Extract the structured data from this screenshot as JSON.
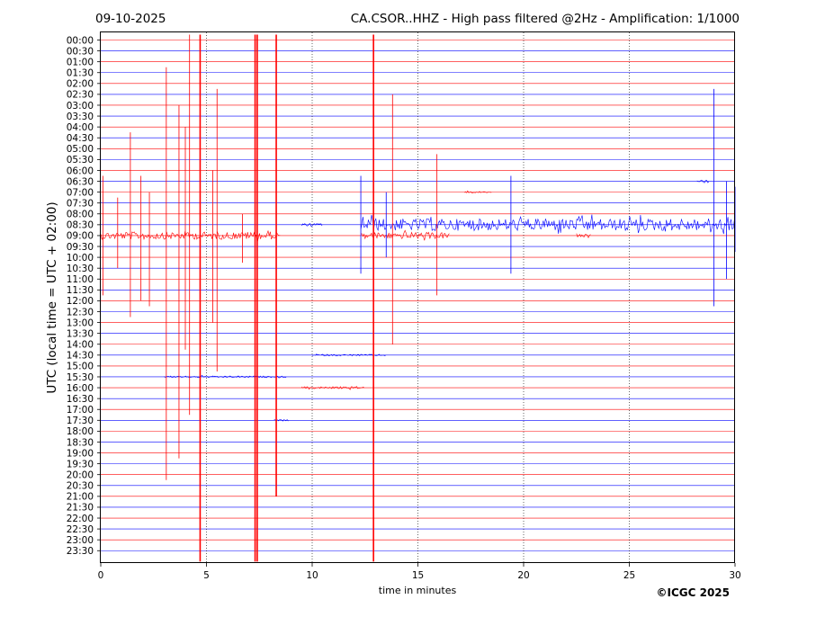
{
  "header": {
    "date": "09-10-2025",
    "title": "CA.CSOR..HHZ - High pass filtered @2Hz - Amplification: 1/1000"
  },
  "copyright": "©ICGC 2025",
  "colors": {
    "red_trace": "#ff0000",
    "blue_trace": "#0000ff",
    "frame": "#000000"
  },
  "chart_data": {
    "type": "line",
    "title": "CA.CSOR..HHZ - High pass filtered @2Hz - Amplification: 1/1000",
    "xlabel": "time in minutes",
    "ylabel": "UTC (local time = UTC + 02:00)",
    "xlim": [
      0,
      30
    ],
    "xticks": [
      "0",
      "5",
      "10",
      "15",
      "20",
      "25",
      "30"
    ],
    "grid": "vertical dotted lines at every 5 minutes",
    "y_rows": [
      "00:00",
      "00:30",
      "01:00",
      "01:30",
      "02:00",
      "02:30",
      "03:00",
      "03:30",
      "04:00",
      "04:30",
      "05:00",
      "05:30",
      "06:00",
      "06:30",
      "07:00",
      "07:30",
      "08:00",
      "08:30",
      "09:00",
      "09:30",
      "10:00",
      "10:30",
      "11:00",
      "11:30",
      "12:00",
      "12:30",
      "13:00",
      "13:30",
      "14:00",
      "14:30",
      "15:00",
      "15:30",
      "16:00",
      "16:30",
      "17:00",
      "17:30",
      "18:00",
      "18:30",
      "19:00",
      "19:30",
      "20:00",
      "20:30",
      "21:00",
      "21:30",
      "22:00",
      "22:30",
      "23:00",
      "23:30"
    ],
    "row_colors": "alternating red (even rows) and blue (odd rows)",
    "noise_bands": [
      {
        "row": "09:00",
        "color": "red",
        "x_start": 0,
        "x_end": 8.5,
        "amplitude": 0.35
      },
      {
        "row": "08:30",
        "color": "blue",
        "x_start": 9.5,
        "x_end": 10.5,
        "amplitude": 0.12
      },
      {
        "row": "08:30",
        "color": "blue",
        "x_start": 12.3,
        "x_end": 30,
        "amplitude": 0.55
      },
      {
        "row": "09:00",
        "color": "red",
        "x_start": 12.3,
        "x_end": 16.5,
        "amplitude": 0.3
      },
      {
        "row": "09:00",
        "color": "red",
        "x_start": 22.5,
        "x_end": 23.2,
        "amplitude": 0.12
      },
      {
        "row": "14:30",
        "color": "blue",
        "x_start": 10,
        "x_end": 13.5,
        "amplitude": 0.08
      },
      {
        "row": "15:30",
        "color": "blue",
        "x_start": 3,
        "x_end": 8.8,
        "amplitude": 0.08
      },
      {
        "row": "17:30",
        "color": "blue",
        "x_start": 8.2,
        "x_end": 8.9,
        "amplitude": 0.08
      },
      {
        "row": "16:00",
        "color": "red",
        "x_start": 9.5,
        "x_end": 12.5,
        "amplitude": 0.1
      },
      {
        "row": "06:30",
        "color": "blue",
        "x_start": 28.2,
        "x_end": 28.8,
        "amplitude": 0.15
      },
      {
        "row": "07:00",
        "color": "red",
        "x_start": 17.2,
        "x_end": 18.5,
        "amplitude": 0.08
      }
    ],
    "spikes": [
      {
        "x": 0.1,
        "row": "09:00",
        "color": "red",
        "up": 5.5,
        "down": 5.5
      },
      {
        "x": 0.8,
        "row": "09:00",
        "color": "red",
        "up": 3.5,
        "down": 3.0
      },
      {
        "x": 1.4,
        "row": "09:00",
        "color": "red",
        "up": 9.5,
        "down": 7.5
      },
      {
        "x": 1.9,
        "row": "09:00",
        "color": "red",
        "up": 5.5,
        "down": 6.0
      },
      {
        "x": 2.3,
        "row": "09:00",
        "color": "red",
        "up": 4.0,
        "down": 6.5
      },
      {
        "x": 3.1,
        "row": "09:00",
        "color": "red",
        "up": 15.5,
        "down": 22.5
      },
      {
        "x": 3.7,
        "row": "09:00",
        "color": "red",
        "up": 12.0,
        "down": 20.5
      },
      {
        "x": 4.0,
        "row": "09:00",
        "color": "red",
        "up": 10.0,
        "down": 10.5
      },
      {
        "x": 4.2,
        "row": "09:00",
        "color": "red",
        "up": 18.5,
        "down": 16.5
      },
      {
        "x": 4.7,
        "row": "09:00",
        "color": "red",
        "up": 18.5,
        "down": 30.0
      },
      {
        "x": 5.3,
        "row": "09:00",
        "color": "red",
        "up": 6.0,
        "down": 8.0
      },
      {
        "x": 5.5,
        "row": "09:00",
        "color": "red",
        "up": 13.5,
        "down": 12.5
      },
      {
        "x": 6.7,
        "row": "09:00",
        "color": "red",
        "up": 2.0,
        "down": 2.5
      },
      {
        "x": 7.3,
        "row": "09:00",
        "color": "red",
        "up": 18.5,
        "down": 30.0
      },
      {
        "x": 7.4,
        "row": "09:00",
        "color": "red",
        "up": 18.5,
        "down": 30.0
      },
      {
        "x": 8.3,
        "row": "09:00",
        "color": "red",
        "up": 18.5,
        "down": 24.0
      },
      {
        "x": 12.9,
        "row": "09:00",
        "color": "red",
        "up": 18.5,
        "down": 30.0
      },
      {
        "x": 13.8,
        "row": "09:00",
        "color": "red",
        "up": 13.0,
        "down": 10.0
      },
      {
        "x": 15.9,
        "row": "09:00",
        "color": "red",
        "up": 7.5,
        "down": 5.5
      },
      {
        "x": 12.3,
        "row": "08:30",
        "color": "blue",
        "up": 4.5,
        "down": 4.5
      },
      {
        "x": 13.5,
        "row": "08:30",
        "color": "blue",
        "up": 3.0,
        "down": 3.0
      },
      {
        "x": 19.4,
        "row": "08:30",
        "color": "blue",
        "up": 4.5,
        "down": 4.5
      },
      {
        "x": 29.0,
        "row": "08:30",
        "color": "blue",
        "up": 12.5,
        "down": 7.5
      },
      {
        "x": 29.6,
        "row": "08:30",
        "color": "blue",
        "up": 4.0,
        "down": 5.0
      },
      {
        "x": 30.0,
        "row": "08:30",
        "color": "blue",
        "up": 3.5,
        "down": 2.5
      }
    ]
  }
}
